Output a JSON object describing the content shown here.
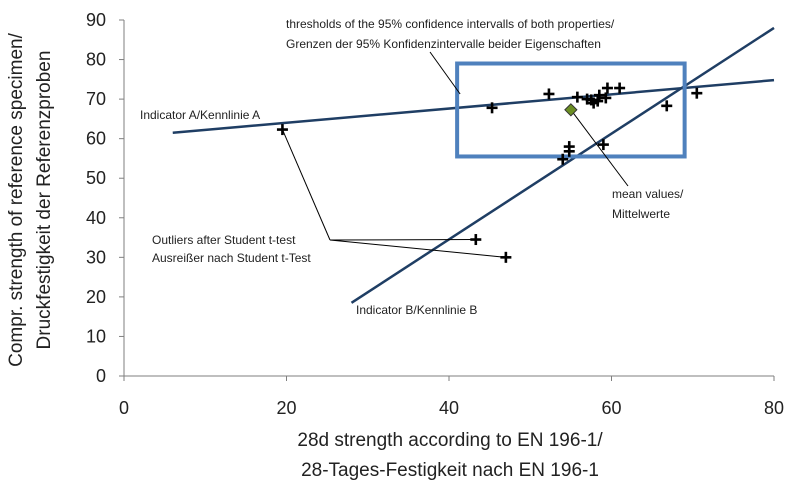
{
  "chart_data": {
    "type": "scatter",
    "xlabel_lines": [
      "28d strength according to EN 196-1/",
      "28-Tages-Festigkeit nach EN 196-1"
    ],
    "ylabel_lines": [
      "Compr. strength of reference specimen/",
      "Druckfestigkeit der Referenzproben"
    ],
    "xlim": [
      0,
      80
    ],
    "ylim": [
      0,
      90
    ],
    "xticks": [
      "0",
      "20",
      "40",
      "60",
      "80"
    ],
    "yticks": [
      "0",
      "10",
      "20",
      "30",
      "40",
      "50",
      "60",
      "70",
      "80",
      "90"
    ],
    "grid": false,
    "points": [
      {
        "x": 19.5,
        "y": 62.3
      },
      {
        "x": 45.3,
        "y": 67.8
      },
      {
        "x": 52.3,
        "y": 71.3
      },
      {
        "x": 54.0,
        "y": 54.8
      },
      {
        "x": 54.8,
        "y": 56.8
      },
      {
        "x": 54.8,
        "y": 58.0
      },
      {
        "x": 55.8,
        "y": 70.5
      },
      {
        "x": 57.0,
        "y": 70.0
      },
      {
        "x": 57.5,
        "y": 69.8
      },
      {
        "x": 57.8,
        "y": 69.0
      },
      {
        "x": 58.3,
        "y": 69.5
      },
      {
        "x": 58.5,
        "y": 71.0
      },
      {
        "x": 59.0,
        "y": 58.5
      },
      {
        "x": 59.3,
        "y": 70.3
      },
      {
        "x": 59.5,
        "y": 72.8
      },
      {
        "x": 61.0,
        "y": 72.8
      },
      {
        "x": 66.8,
        "y": 68.3
      },
      {
        "x": 70.5,
        "y": 71.5
      },
      {
        "x": 43.3,
        "y": 34.5
      },
      {
        "x": 47.0,
        "y": 30.0
      }
    ],
    "mean_point": {
      "x": 55.0,
      "y": 67.3,
      "color": "#6b8e23"
    },
    "lines": [
      {
        "name": "Indicator A/Kennlinie A",
        "x": [
          6,
          80
        ],
        "y": [
          61.5,
          74.8
        ],
        "color": "#1f3e64"
      },
      {
        "name": "Indicator B/Kennlinie B",
        "x": [
          28,
          80
        ],
        "y": [
          18.5,
          88
        ],
        "color": "#1f3e64"
      }
    ],
    "confidence_box": {
      "x": [
        41,
        69
      ],
      "y": [
        55.5,
        79
      ],
      "color": "#4f81bd"
    },
    "annotations": {
      "thresholds": [
        "thresholds of the 95% confidence intervalls of both properties/",
        "Grenzen der 95% Konfidenzintervalle beider Eigenschaften"
      ],
      "mean": [
        "mean values/",
        "Mittelwerte"
      ],
      "outliers": [
        "Outliers after Student t-test",
        "Ausreißer nach Student t-Test"
      ],
      "line_a": "Indicator A/Kennlinie A",
      "line_b": "Indicator B/Kennlinie B"
    }
  }
}
